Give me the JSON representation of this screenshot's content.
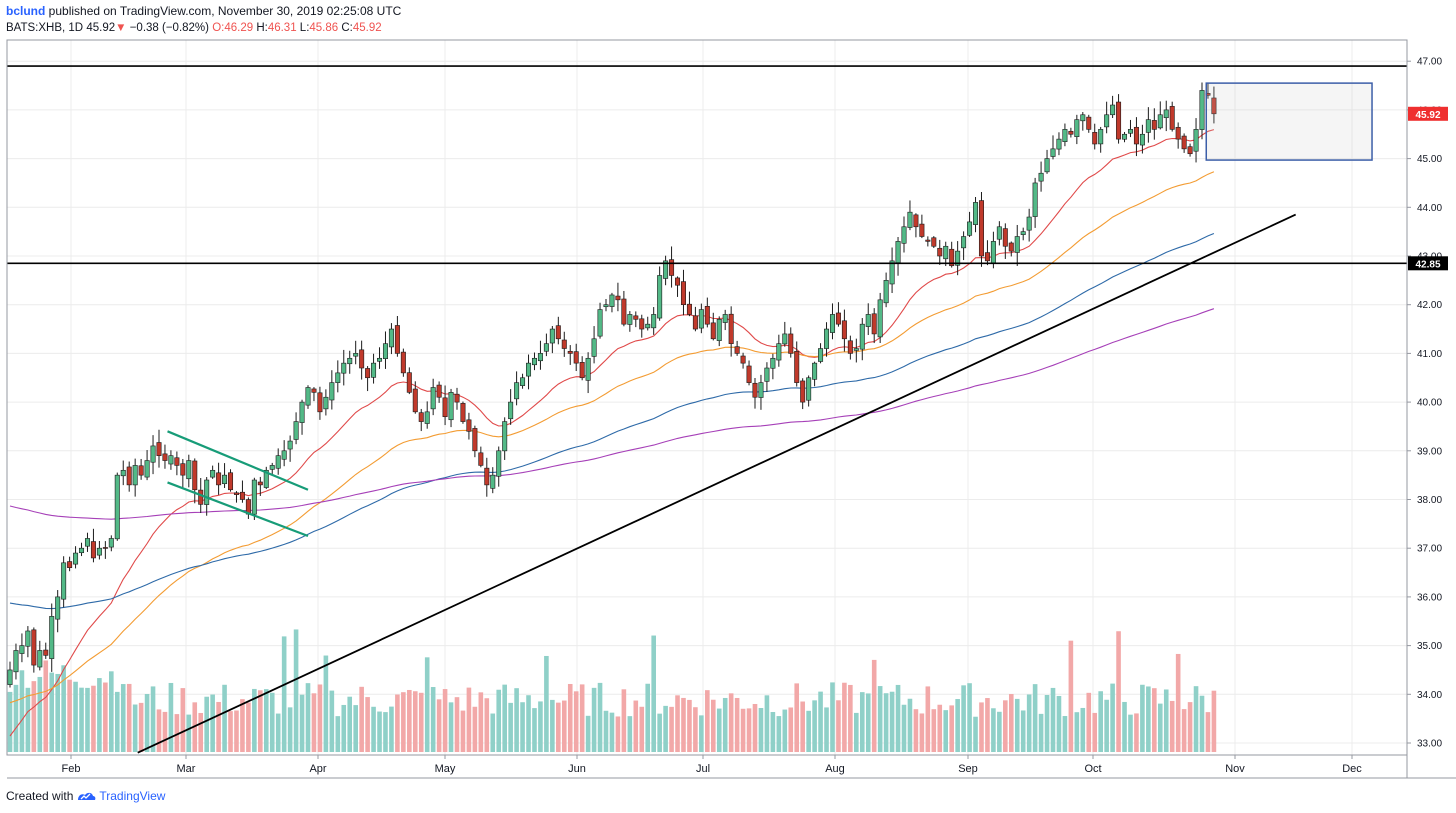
{
  "header": {
    "author": "bclund",
    "published": "published on TradingView.com, November 30, 2019 02:25:08 UTC",
    "symbol": "BATS:XHB, 1D",
    "last": "45.92",
    "change": "−0.38 (−0.82%)",
    "o_label": "O:",
    "o": "46.29",
    "h_label": "H:",
    "h": "46.31",
    "l_label": "L:",
    "l": "45.86",
    "c_label": "C:",
    "c": "45.92"
  },
  "footer": {
    "created_with": "Created with",
    "brand": "TradingView"
  },
  "colors": {
    "up": "#26a69a",
    "up_body": "#53b987",
    "down_body": "#c0392b",
    "vol_up": "#8fd0c8",
    "vol_down": "#f2a8a8",
    "ema20": "#e04a4a",
    "ema50": "#f39c33",
    "ema100": "#2e6aa8",
    "ema200": "#a640b8",
    "channel": "#179c78",
    "range_box": "#3c5ea8",
    "grid": "#ececec"
  },
  "chart_data": {
    "type": "candlestick",
    "ylim": [
      32.8,
      47.4
    ],
    "y_ticks": [
      "33.00",
      "34.00",
      "35.00",
      "36.00",
      "37.00",
      "38.00",
      "39.00",
      "40.00",
      "41.00",
      "42.00",
      "43.00",
      "44.00",
      "45.00",
      "46.00",
      "47.00"
    ],
    "x_ticks": [
      "Feb",
      "Mar",
      "Apr",
      "May",
      "Jun",
      "Jul",
      "Aug",
      "Sep",
      "Oct",
      "Nov",
      "Dec"
    ],
    "last_price_label": "45.92",
    "support_label": "42.85",
    "horizontal_levels": [
      46.9,
      42.85
    ],
    "trendline": {
      "from": [
        "2019-02-13",
        32.8
      ],
      "to": [
        "2019-11-12",
        43.85
      ]
    },
    "channel_upper": {
      "from": [
        "2019-02-20",
        39.4
      ],
      "to": [
        "2019-03-25",
        38.2
      ]
    },
    "channel_lower": {
      "from": [
        "2019-02-20",
        38.35
      ],
      "to": [
        "2019-03-25",
        37.25
      ]
    },
    "range_box": {
      "from": "2019-10-22",
      "to": "2019-11-29",
      "top": 46.55,
      "bottom": 44.97
    },
    "candles_close": [
      34.5,
      34.9,
      35.0,
      35.3,
      34.6,
      34.9,
      34.8,
      35.6,
      36.0,
      36.7,
      36.6,
      36.9,
      37.0,
      37.2,
      36.8,
      37.0,
      37.0,
      37.2,
      38.5,
      38.6,
      38.3,
      38.7,
      38.5,
      38.8,
      39.1,
      38.9,
      38.8,
      38.9,
      38.7,
      38.5,
      38.8,
      38.2,
      37.9,
      38.4,
      38.6,
      38.3,
      38.5,
      38.2,
      38.1,
      38.0,
      37.7,
      38.4,
      38.3,
      38.6,
      38.7,
      38.9,
      39.0,
      39.2,
      39.6,
      40.0,
      40.3,
      40.2,
      39.8,
      40.1,
      40.4,
      40.6,
      40.8,
      40.9,
      41.0,
      40.7,
      40.5,
      40.8,
      40.9,
      41.2,
      41.5,
      41.0,
      40.6,
      40.2,
      39.8,
      39.6,
      39.8,
      40.3,
      40.1,
      39.7,
      40.2,
      40.0,
      39.6,
      39.4,
      39.0,
      38.7,
      38.3,
      38.5,
      39.0,
      39.6,
      40.0,
      40.4,
      40.5,
      40.8,
      40.9,
      41.0,
      41.2,
      41.5,
      41.3,
      41.1,
      41.0,
      40.8,
      40.5,
      40.9,
      41.3,
      41.9,
      42.0,
      42.2,
      42.1,
      41.6,
      41.8,
      41.7,
      41.5,
      41.6,
      41.8,
      42.6,
      42.9,
      42.6,
      42.4,
      42.0,
      41.8,
      41.5,
      41.9,
      41.6,
      41.3,
      41.7,
      41.8,
      41.2,
      41.0,
      40.8,
      40.4,
      40.1,
      40.4,
      40.7,
      40.9,
      41.2,
      41.4,
      41.0,
      40.4,
      40.0,
      40.5,
      40.8,
      41.1,
      41.5,
      41.8,
      41.6,
      41.3,
      41.0,
      41.1,
      41.6,
      41.8,
      41.4,
      42.1,
      42.5,
      42.9,
      43.3,
      43.6,
      43.9,
      43.6,
      43.4,
      43.3,
      43.2,
      43.0,
      43.2,
      42.8,
      43.1,
      43.4,
      43.7,
      44.1,
      43.0,
      42.9,
      43.3,
      43.6,
      43.2,
      43.1,
      43.4,
      43.5,
      43.8,
      44.5,
      44.7,
      45.0,
      45.2,
      45.4,
      45.6,
      45.5,
      45.8,
      45.9,
      45.6,
      45.3,
      45.6,
      45.9,
      46.1,
      45.4,
      45.5,
      45.6,
      45.3,
      45.5,
      45.8,
      45.6,
      45.9,
      46.0,
      45.6,
      45.4,
      45.2,
      45.1,
      45.6,
      46.4,
      46.3,
      45.92
    ],
    "ema20_end": 45.65,
    "ema50_end": 44.82,
    "ema100_end": 43.35,
    "ema200_end": 41.62,
    "volume_relative_max": 1.0
  }
}
